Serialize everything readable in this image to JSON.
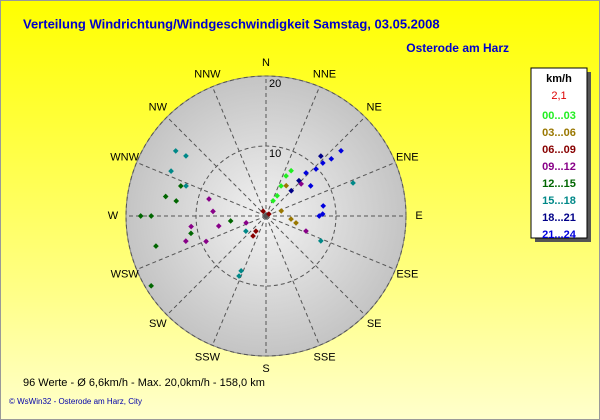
{
  "chart_data": {
    "type": "polar_scatter",
    "title": "Verteilung Windrichtung/Windgeschwindigkeit  Samstag, 03.05.2008",
    "subtitle": "Osterode am Harz",
    "legend_title": "km/h",
    "legend_value": "2,1",
    "summary": "96 Werte   -   Ø 6,6km/h   -   Max. 20,0km/h    -   158,0 km",
    "footer": "© WsWin32  -  Osterode am Harz, City",
    "directions": [
      "N",
      "NNE",
      "NE",
      "ENE",
      "E",
      "ESE",
      "SE",
      "SSE",
      "S",
      "SSW",
      "SW",
      "WSW",
      "W",
      "WNW",
      "NW",
      "NNW"
    ],
    "rlim": [
      0,
      20
    ],
    "rticks": [
      10,
      20
    ],
    "series": [
      {
        "name": "00...03",
        "color": "#22ee22",
        "directions": [
          29,
          26.6,
          26.6,
          28.8,
          25
        ],
        "speeds": [
          7.4,
          6.4,
          4.8,
          3.3,
          2.4
        ]
      },
      {
        "name": "03...06",
        "color": "#997700",
        "directions": [
          33.7,
          103,
          97,
          71.6
        ],
        "speeds": [
          5.2,
          4.4,
          3.6,
          2.3
        ]
      },
      {
        "name": "06...09",
        "color": "#880000",
        "directions": [
          213.7,
          213,
          329,
          56
        ],
        "speeds": [
          2.6,
          3.4,
          0.8,
          0.5
        ]
      },
      {
        "name": "09...12",
        "color": "#880088",
        "directions": [
          286.6,
          275,
          262,
          247,
          252.6,
          251,
          47.6,
          110.6,
          258
        ],
        "speeds": [
          8.5,
          7.6,
          10.8,
          9.3,
          12.0,
          3.0,
          6.8,
          6.1,
          6.9
        ]
      },
      {
        "name": "12...15",
        "color": "#006600",
        "directions": [
          270,
          270,
          238.7,
          254.7,
          279.5,
          281,
          257,
          262,
          289.4
        ],
        "speeds": [
          17.9,
          16.4,
          19.2,
          16.3,
          13.0,
          14.6,
          11.0,
          5.1,
          12.9
        ]
      },
      {
        "name": "15...18",
        "color": "#008888",
        "directions": [
          305.8,
          306.9,
          295.3,
          290.6,
          204.4,
          204.2,
          114.4,
          69.2,
          233
        ],
        "speeds": [
          15.9,
          14.3,
          15.0,
          12.2,
          8.6,
          9.4,
          8.6,
          13.3,
          3.6
        ]
      },
      {
        "name": "18...21",
        "color": "#000088",
        "directions": [
          42.5,
          43,
          45
        ],
        "speeds": [
          11.6,
          6.9,
          5.1
        ]
      },
      {
        "name": "21...24",
        "color": "#0000dd",
        "directions": [
          49,
          48.8,
          47,
          46.8,
          42.9,
          80,
          88,
          90,
          56
        ],
        "speeds": [
          14.2,
          12.4,
          11.1,
          9.8,
          8.4,
          8.3,
          8.1,
          7.6,
          7.7
        ]
      }
    ]
  }
}
